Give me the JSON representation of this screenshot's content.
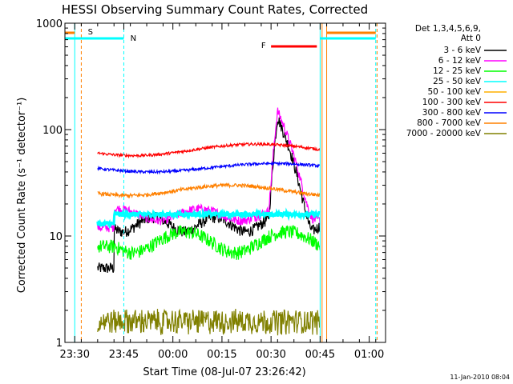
{
  "chart_data": {
    "type": "line",
    "title": "HESSI Observing Summary Count Rates, Corrected",
    "xlabel": "Start Time (08-Jul-07 23:26:42)",
    "ylabel": "Corrected Count Rate (s⁻¹ detector⁻¹)",
    "y_scale": "log",
    "ylim": [
      1,
      1000
    ],
    "xlim_minutes": [
      0,
      38
    ],
    "x_tick_labels": [
      "23:30",
      "23:45",
      "00:00",
      "00:15",
      "00:30",
      "00:45",
      "01:00"
    ],
    "x_tick_minutes": [
      -57,
      -42,
      -27,
      -12,
      3,
      18,
      33
    ],
    "y_tick_labels": [
      "1",
      "10",
      "100",
      "1000"
    ],
    "y_tick_values": [
      1,
      10,
      100,
      1000
    ],
    "legend": {
      "header": [
        "Det 1,3,4,5,6,9,",
        "Att 0"
      ],
      "position": "right-outside",
      "entries": [
        {
          "name": "3 - 6 keV",
          "color": "#000000"
        },
        {
          "name": "6 - 12 keV",
          "color": "#ff00ff"
        },
        {
          "name": "12 - 25 keV",
          "color": "#00ff00"
        },
        {
          "name": "25 - 50 keV",
          "color": "#00ffff"
        },
        {
          "name": "50 - 100 keV",
          "color": "#ffb000"
        },
        {
          "name": "100 - 300 keV",
          "color": "#ff0000"
        },
        {
          "name": "300 - 800 keV",
          "color": "#0000ff"
        },
        {
          "name": "800 - 7000 keV",
          "color": "#ff8000"
        },
        {
          "name": "7000 - 20000 keV",
          "color": "#808000"
        }
      ]
    },
    "flags": [
      {
        "label": "S",
        "color": "#ff8000"
      },
      {
        "label": "N",
        "color": "#00ffff"
      },
      {
        "label": "F",
        "color": "#ff0000"
      }
    ],
    "series_approx": [
      {
        "name": "3 - 6 keV",
        "start_time": "23:37",
        "end_time": "00:45",
        "typical_value": 13,
        "peak": 130
      },
      {
        "name": "6 - 12 keV",
        "start_time": "23:37",
        "end_time": "00:45",
        "typical_value": 16,
        "peak": 150
      },
      {
        "name": "12 - 25 keV",
        "start_time": "23:37",
        "end_time": "00:45",
        "typical_value": 9
      },
      {
        "name": "25 - 50 keV",
        "start_time": "23:37",
        "end_time": "00:45",
        "typical_value": 16
      },
      {
        "name": "100 - 300 keV",
        "start_time": "23:37",
        "end_time": "00:45",
        "typical_value": 65
      },
      {
        "name": "300 - 800 keV",
        "start_time": "23:37",
        "end_time": "00:45",
        "typical_value": 45
      },
      {
        "name": "800 - 7000 keV",
        "start_time": "23:37",
        "end_time": "00:45",
        "typical_value": 27
      },
      {
        "name": "7000 - 20000 keV",
        "start_time": "23:37",
        "end_time": "00:45",
        "typical_value": 1.5
      }
    ]
  },
  "footer": {
    "timestamp": "11-Jan-2010 08:04"
  }
}
